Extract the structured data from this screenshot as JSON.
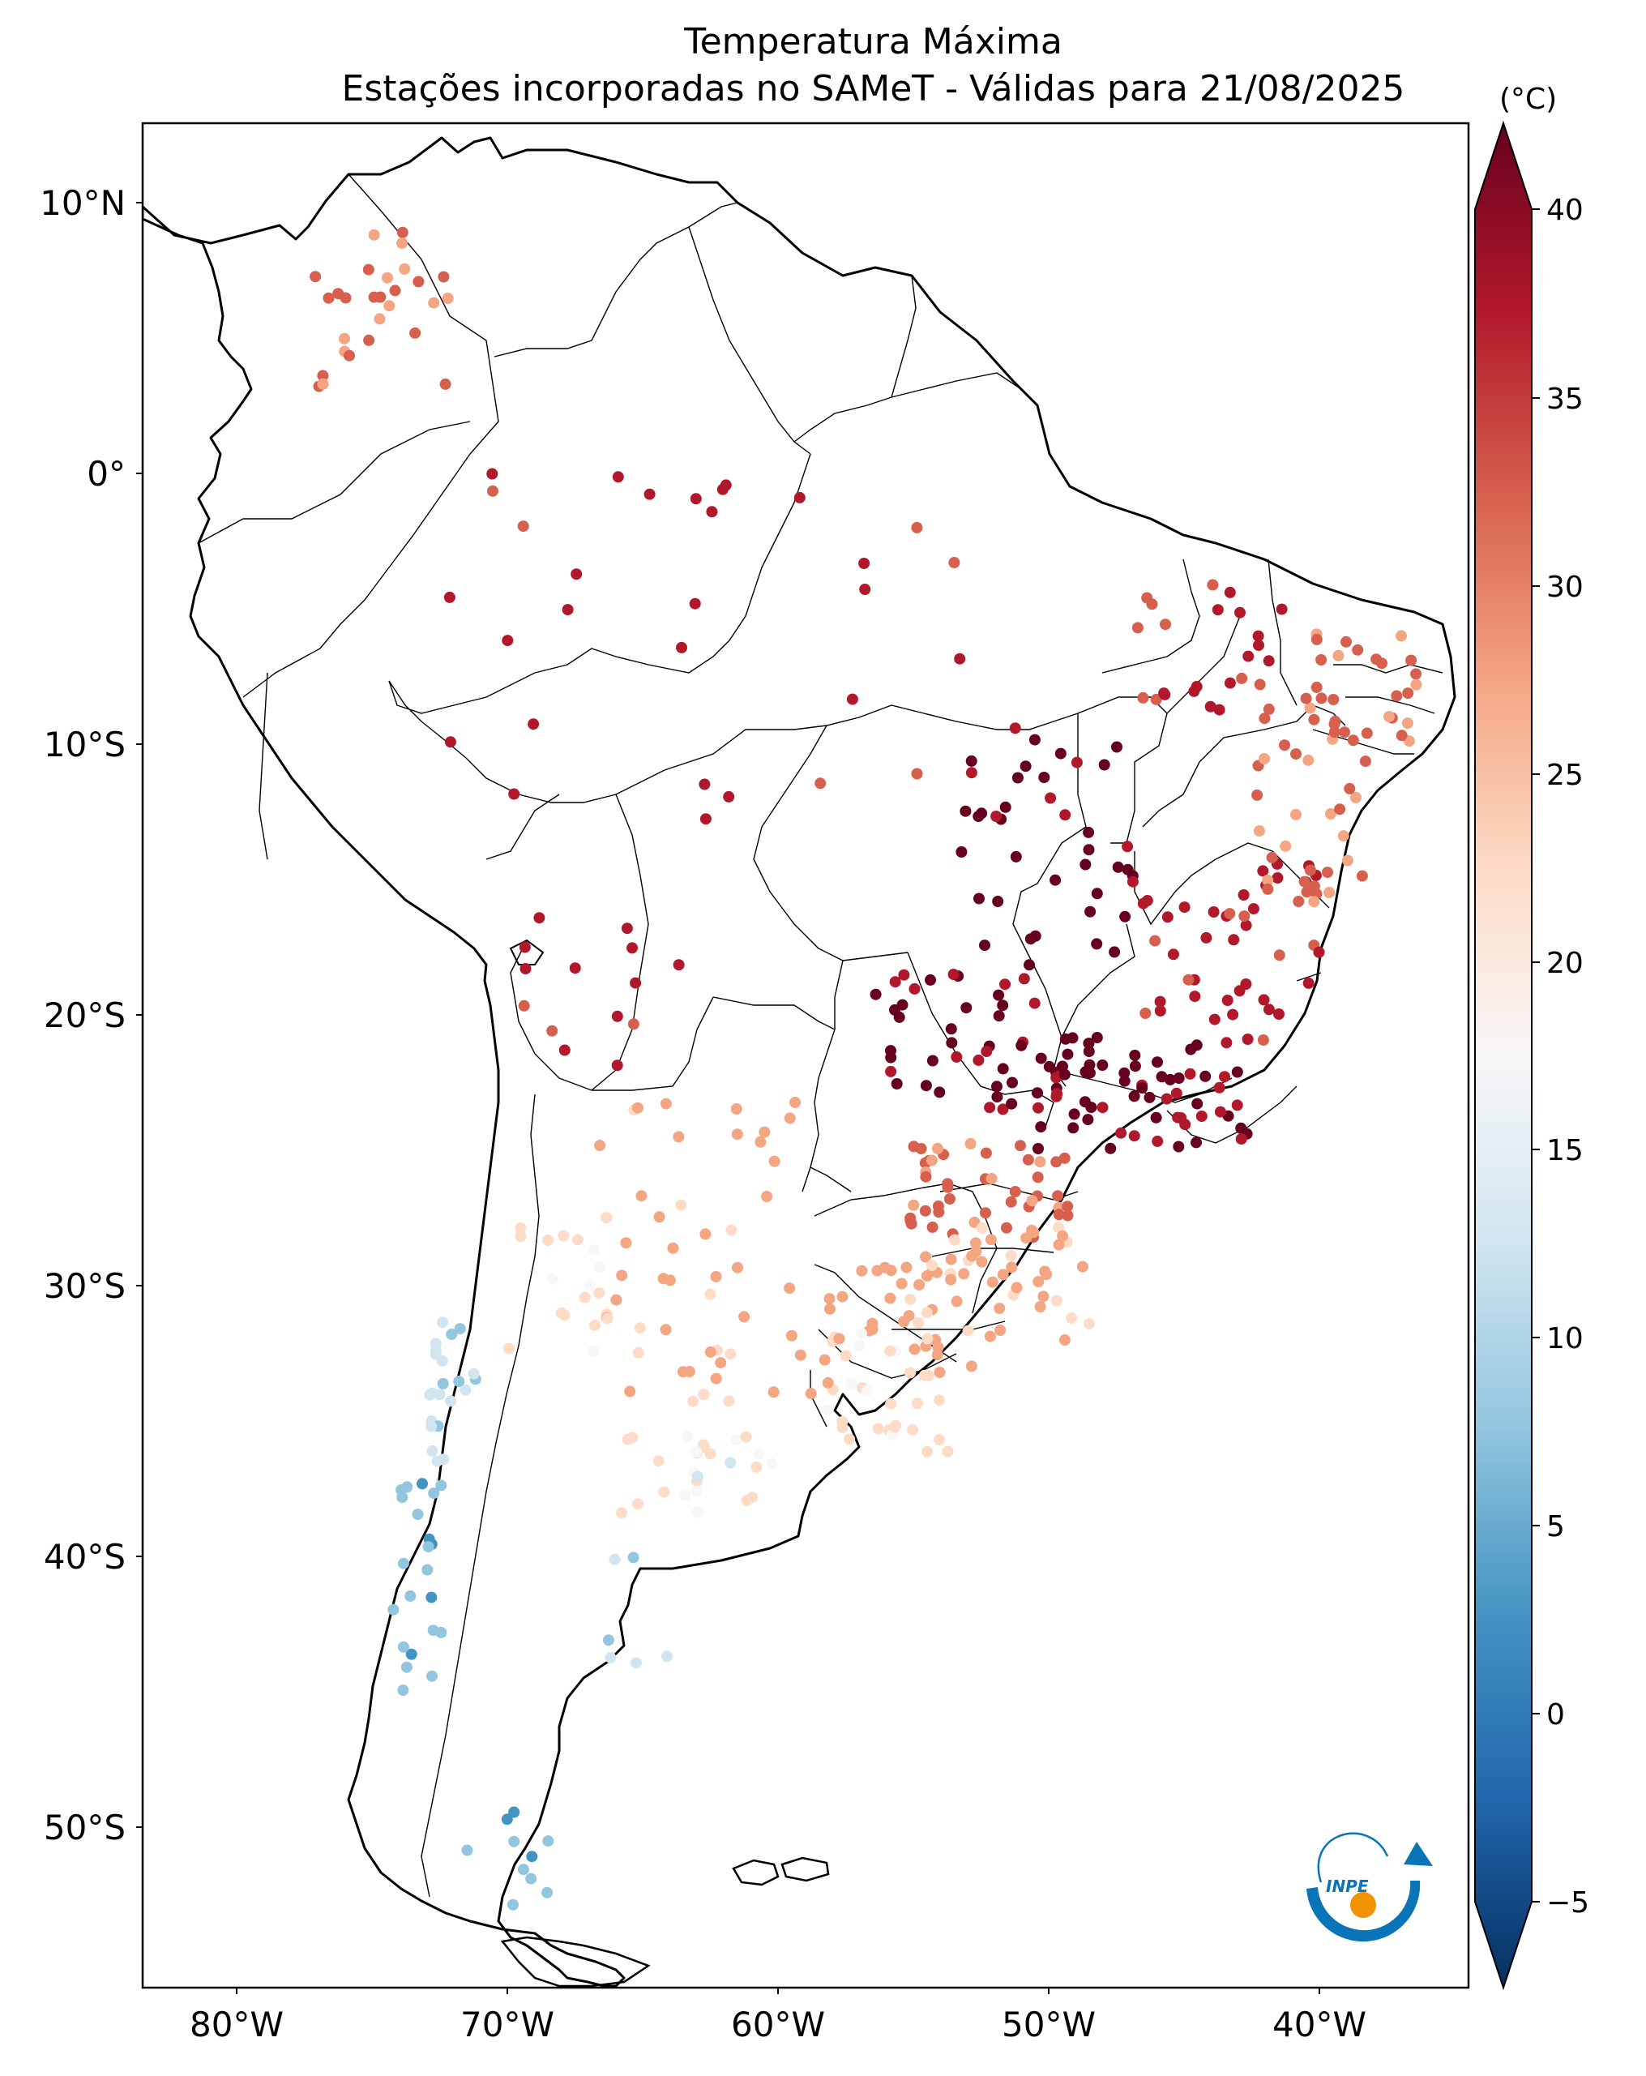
{
  "title": {
    "line1": "Temperatura Máxima",
    "line2": "Estações incorporadas no SAMeT - Válidas para 21/08/2025"
  },
  "colorbar": {
    "unit": "(°C)",
    "ticks": [
      "40",
      "35",
      "30",
      "25",
      "20",
      "15",
      "10",
      "5",
      "0",
      "−5"
    ],
    "colors": [
      "#67001f",
      "#b2182b",
      "#d6604d",
      "#f4a582",
      "#fddbc7",
      "#f7f7f7",
      "#d1e5f0",
      "#92c5de",
      "#4393c3",
      "#2166ac",
      "#053061"
    ]
  },
  "axes": {
    "lat_labels": [
      "10°N",
      "0°",
      "10°S",
      "20°S",
      "30°S",
      "40°S",
      "50°S"
    ],
    "lon_labels": [
      "80°W",
      "70°W",
      "60°W",
      "50°W",
      "40°W"
    ]
  },
  "logo": {
    "text": "INPE",
    "colors": {
      "blue": "#0a74b9",
      "orange": "#f39200"
    }
  }
}
